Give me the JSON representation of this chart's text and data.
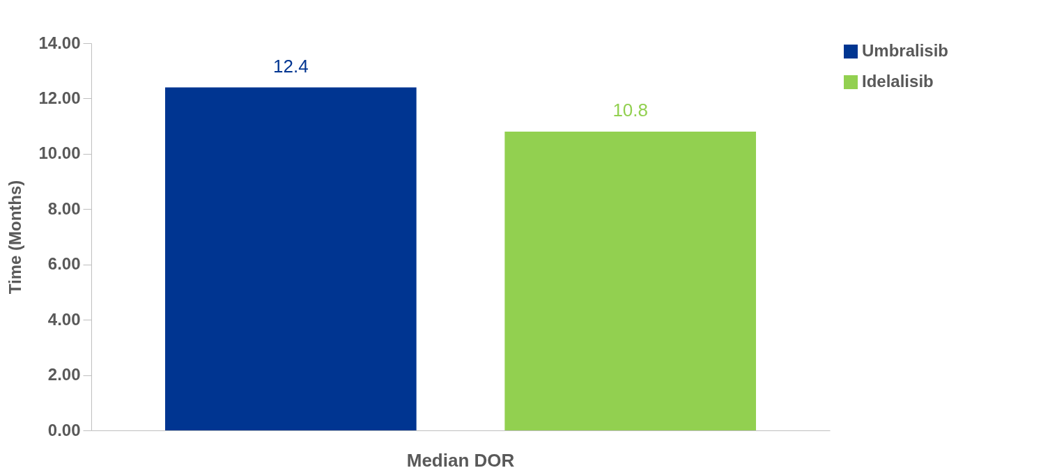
{
  "chart_data": {
    "type": "bar",
    "ylabel": "Time (Months)",
    "categories": [
      "Median DOR"
    ],
    "series": [
      {
        "name": "Umbralisib",
        "color": "#003591",
        "values": [
          12.4
        ]
      },
      {
        "name": "Idelalisib",
        "color": "#92d050",
        "values": [
          10.8
        ]
      }
    ],
    "ylim": [
      0,
      14
    ],
    "yticks": [
      {
        "value": 0,
        "label": "0.00"
      },
      {
        "value": 2,
        "label": "2.00"
      },
      {
        "value": 4,
        "label": "4.00"
      },
      {
        "value": 6,
        "label": "6.00"
      },
      {
        "value": 8,
        "label": "8.00"
      },
      {
        "value": 10,
        "label": "10.00"
      },
      {
        "value": 12,
        "label": "12.00"
      },
      {
        "value": 14,
        "label": "14.00"
      }
    ],
    "grid": false,
    "legend": "right",
    "data_labels": true
  }
}
